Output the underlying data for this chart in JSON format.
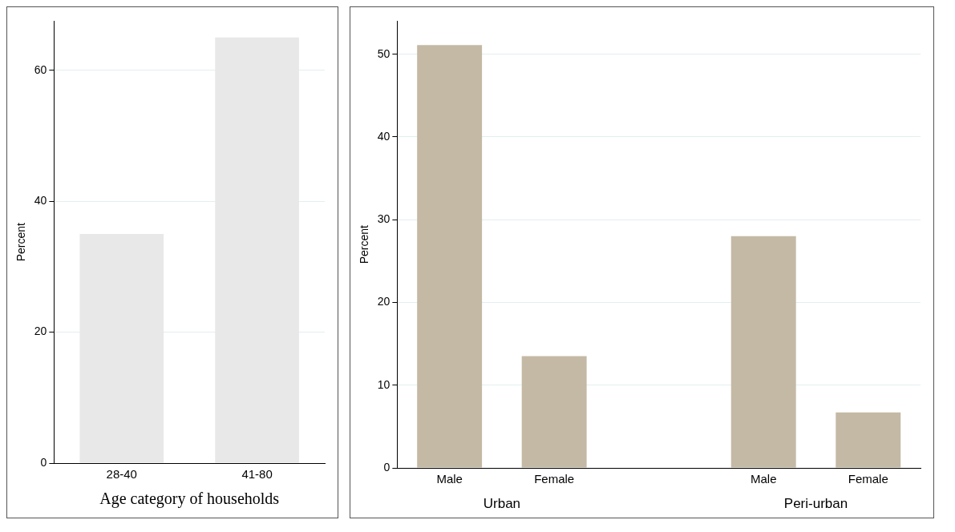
{
  "chart_data": [
    {
      "type": "bar",
      "categories": [
        "28-40",
        "41-80"
      ],
      "values": [
        35,
        65
      ],
      "color": "#e8e8e8",
      "ylim": [
        0,
        67.5
      ],
      "yticks": [
        0,
        20,
        40,
        60
      ],
      "grid": "y",
      "ylabel": "Percent",
      "xlabel": "Age category of households"
    },
    {
      "type": "bar",
      "categories": [
        "Male",
        "Female",
        null,
        "Male",
        "Female"
      ],
      "values": [
        51.1,
        13.5,
        null,
        28.0,
        6.7
      ],
      "color": "#c4b9a4",
      "ylim": [
        0,
        54
      ],
      "yticks": [
        0,
        10,
        20,
        30,
        40,
        50
      ],
      "grid": "y",
      "ylabel": "Percent",
      "annotations": [
        "Urban",
        "Peri-urban"
      ]
    }
  ]
}
